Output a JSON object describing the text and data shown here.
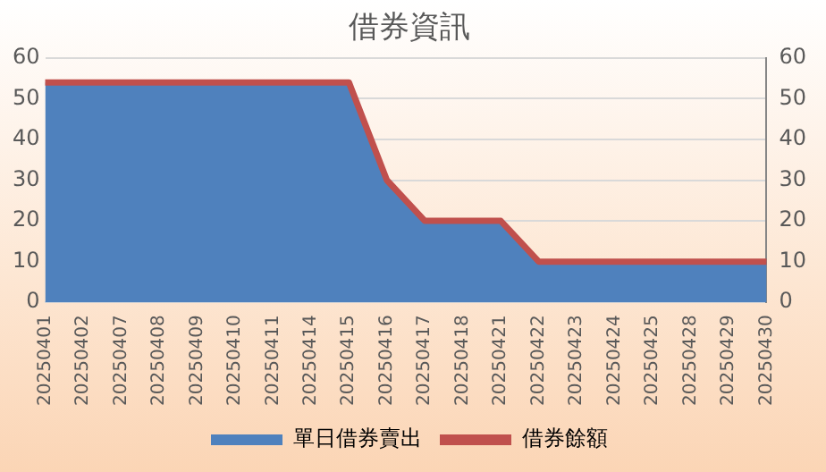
{
  "chart_data": {
    "type": "area",
    "title": "借券資訊",
    "categories": [
      "20250401",
      "20250402",
      "20250407",
      "20250408",
      "20250409",
      "20250410",
      "20250411",
      "20250414",
      "20250415",
      "20250416",
      "20250417",
      "20250418",
      "20250421",
      "20250422",
      "20250423",
      "20250424",
      "20250425",
      "20250428",
      "20250429",
      "20250430"
    ],
    "series": [
      {
        "name": "單日借券賣出",
        "color": "#4f81bd",
        "values": [
          54,
          54,
          54,
          54,
          54,
          54,
          54,
          54,
          54,
          30,
          20,
          20,
          20,
          10,
          10,
          10,
          10,
          10,
          10,
          10
        ]
      },
      {
        "name": "借券餘額",
        "type": "line",
        "axis": "y2",
        "color": "#c0504d",
        "values": [
          54,
          54,
          54,
          54,
          54,
          54,
          54,
          54,
          54,
          30,
          20,
          20,
          20,
          10,
          10,
          10,
          10,
          10,
          10,
          10
        ]
      }
    ],
    "ylim": [
      0,
      60
    ],
    "yticks": [
      0,
      10,
      20,
      30,
      40,
      50,
      60
    ],
    "y2lim": [
      0,
      60
    ],
    "y2ticks": [
      0,
      10,
      20,
      30,
      40,
      50,
      60
    ],
    "grid": "y",
    "legend": "bottom",
    "marker": "none",
    "line_style": "solid"
  }
}
